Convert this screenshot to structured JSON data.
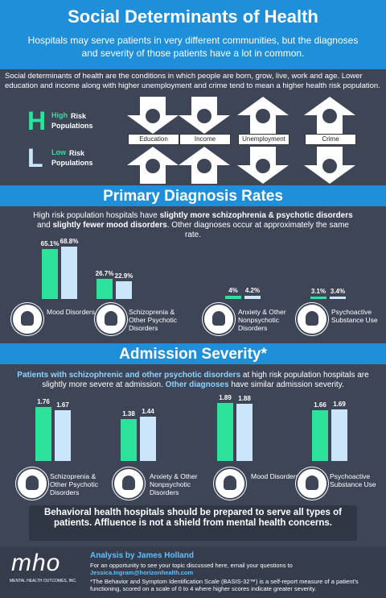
{
  "header": {
    "title": "Social Determinants of Health",
    "subtitle": "Hospitals may serve patients in very different communities, but the diagnoses and severity of those patients have a lot in common."
  },
  "intro": "Social determinants of health are the conditions in which people are born, grow, live, work and age. Lower education and income along with higher unemployment and crime tend to mean a higher health risk population.",
  "populations": [
    {
      "letter": "H",
      "highlight": "High",
      "rest": "Risk Populations"
    },
    {
      "letter": "L",
      "highlight": "Low",
      "rest": "Risk Populations"
    }
  ],
  "determinants": [
    "Education",
    "Income",
    "Unemployment",
    "Crime"
  ],
  "colors": [
    "#2de29b",
    "#cbe6fb"
  ],
  "diagnosis": {
    "title": "Primary Diagnosis Rates",
    "text": [
      "High risk population hospitals have ",
      "slightly more schizophrenia & psychotic disorders",
      " and ",
      "slightly fewer mood disorders",
      ". Other diagnoses occur at approximately the same rate."
    ],
    "groups": [
      {
        "label": "Mood Disorders",
        "values": [
          65.1,
          68.8
        ],
        "value_labels": [
          "65.1%",
          "68.8%"
        ]
      },
      {
        "label": "Schizoprenia & Other Psychotic Disorders",
        "values": [
          26.7,
          22.9
        ],
        "value_labels": [
          "26.7%",
          "22.9%"
        ]
      },
      {
        "label": "Anxiety & Other Nonpsychotic Disorders",
        "values": [
          4,
          4.2
        ],
        "value_labels": [
          "4%",
          "4.2%"
        ]
      },
      {
        "label": "Psychoactive Substance Use",
        "values": [
          3.1,
          3.4
        ],
        "value_labels": [
          "3.1%",
          "3.4%"
        ]
      }
    ]
  },
  "severity": {
    "title": "Admission Severity*",
    "text": [
      "Patients with schizophrenic and other psychotic disorders",
      " at high risk population hospitals are slightly more severe at admission. ",
      "Other diagnoses",
      " have similar admission severity."
    ],
    "groups": [
      {
        "label": "Schizoprenia & Other Psychotic Disorders",
        "values": [
          1.76,
          1.67
        ]
      },
      {
        "label": "Anxiety & Other Nonpsychotic Disorders",
        "values": [
          1.38,
          1.44
        ]
      },
      {
        "label": "Mood Disorders",
        "values": [
          1.89,
          1.88
        ]
      },
      {
        "label": "Psychoactive Substance Use",
        "values": [
          1.66,
          1.69
        ]
      }
    ]
  },
  "message": "Behavioral health hospitals should be prepared to serve all types of patients. Affluence is not a shield from mental health concerns.",
  "footer": {
    "logo": "mho",
    "company": "MENTAL HEALTH OUTCOMES, INC.",
    "author": "Analysis by James  Holland",
    "contact": "For an opportunity to see your topic discussed here, email your questions to",
    "email": "Jessica.Ingram@horizonhealth.com",
    "note": "*The Behavior and Symptom Identification Scale (BASIS-32™) is a self-report measure of a patient's functioning, scored on a scale of 0 to 4 where higher scores indicate greater severity."
  }
}
